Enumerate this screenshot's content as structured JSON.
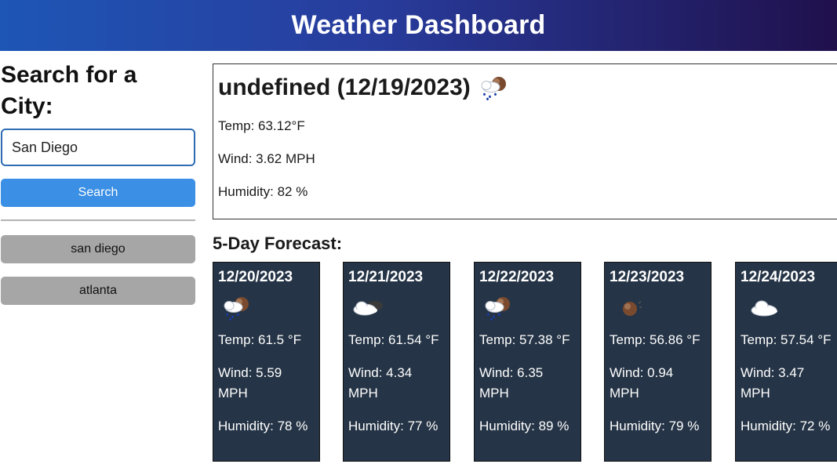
{
  "header": {
    "title": "Weather Dashboard"
  },
  "sidebar": {
    "heading": "Search for a City:",
    "search_value": "San Diego",
    "search_button": "Search",
    "history": [
      "san diego",
      "atlanta"
    ]
  },
  "current": {
    "title": "undefined (12/19/2023)",
    "icon": "rain-sun-icon",
    "temp": "Temp: 63.12°F",
    "wind": "Wind: 3.62 MPH",
    "humidity": "Humidity: 82 %"
  },
  "forecast": {
    "heading": "5-Day Forecast:",
    "days": [
      {
        "date": "12/20/2023",
        "icon": "rain-sun-icon",
        "temp": "Temp: 61.5 °F",
        "wind_value": "Wind: 5.59",
        "wind_unit": "MPH",
        "humidity": "Humidity: 78 %"
      },
      {
        "date": "12/21/2023",
        "icon": "cloud-dark-icon",
        "temp": "Temp: 61.54 °F",
        "wind_value": "Wind: 4.34",
        "wind_unit": "MPH",
        "humidity": "Humidity: 77 %"
      },
      {
        "date": "12/22/2023",
        "icon": "rain-sun-icon",
        "temp": "Temp: 57.38 °F",
        "wind_value": "Wind: 6.35",
        "wind_unit": "MPH",
        "humidity": "Humidity: 89 %"
      },
      {
        "date": "12/23/2023",
        "icon": "sun-icon",
        "temp": "Temp: 56.86 °F",
        "wind_value": "Wind: 0.94",
        "wind_unit": "MPH",
        "humidity": "Humidity: 79 %"
      },
      {
        "date": "12/24/2023",
        "icon": "cloud-icon",
        "temp": "Temp: 57.54 °F",
        "wind_value": "Wind: 3.47",
        "wind_unit": "MPH",
        "humidity": "Humidity: 72 %"
      }
    ]
  }
}
